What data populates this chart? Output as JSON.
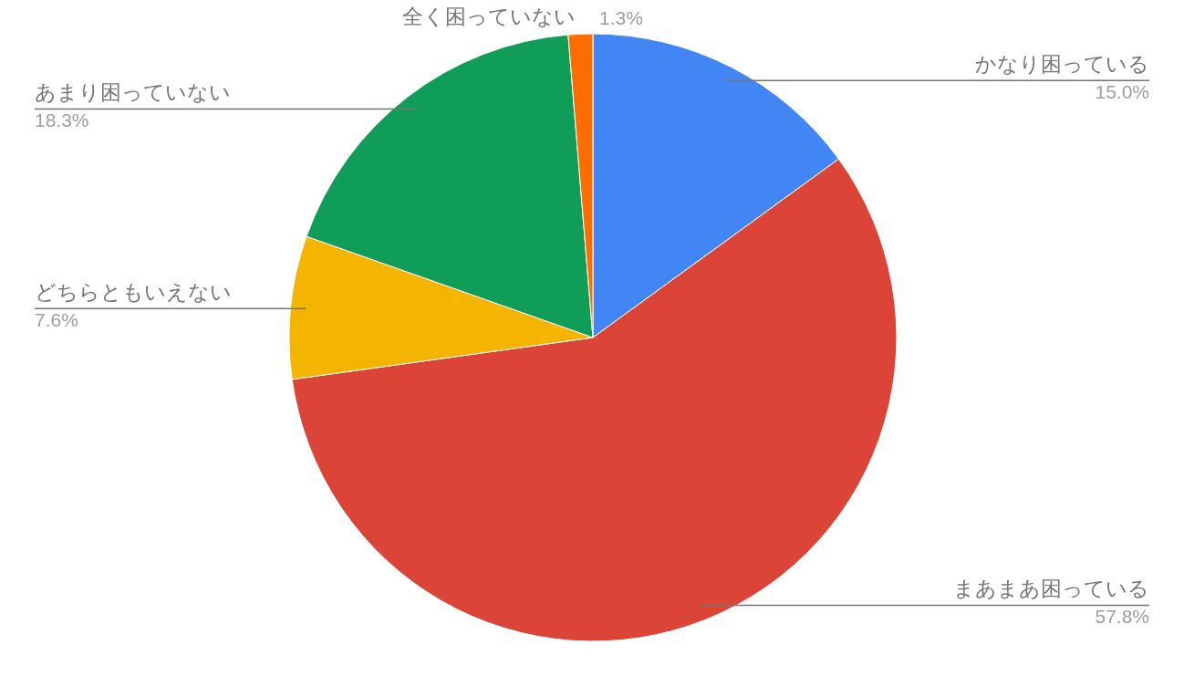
{
  "chart_data": {
    "type": "pie",
    "categories": [
      "かなり困っている",
      "まあまあ困っている",
      "どちらともいえない",
      "あまり困っていない",
      "全く困っていない"
    ],
    "values": [
      15.0,
      57.8,
      7.6,
      18.3,
      1.3
    ],
    "value_labels": [
      "15.0%",
      "57.8%",
      "7.6%",
      "18.3%",
      "1.3%"
    ],
    "colors": [
      "#4285f4",
      "#db4437",
      "#f4b400",
      "#0f9d58",
      "#ff6d01"
    ]
  }
}
